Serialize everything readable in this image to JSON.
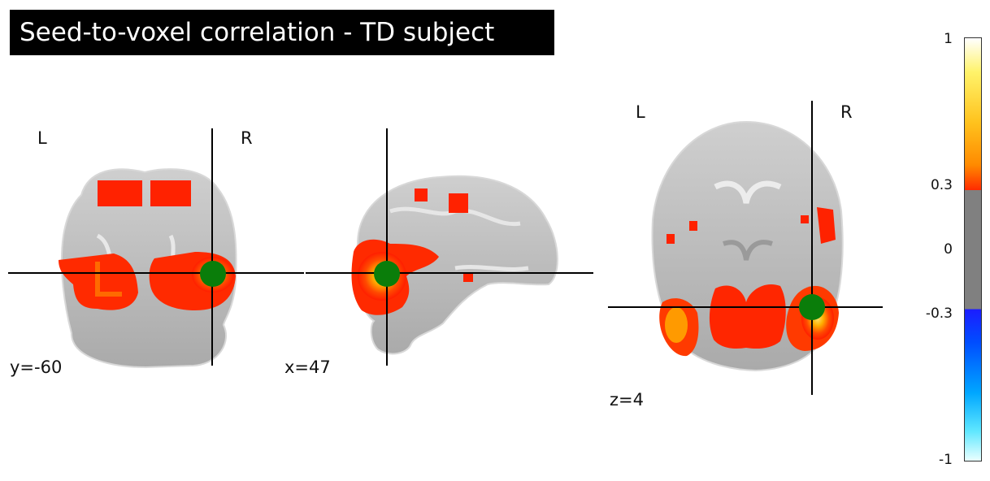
{
  "title": "Seed-to-voxel correlation - TD subject",
  "views": {
    "coronal": {
      "cut_label": "y=-60",
      "left": "L",
      "right": "R"
    },
    "sagittal": {
      "cut_label": "x=47"
    },
    "axial": {
      "cut_label": "z=4",
      "left": "L",
      "right": "R"
    }
  },
  "colorbar": {
    "ticks": [
      "1",
      "0.3",
      "0",
      "-0.3",
      "-1"
    ],
    "vmin": -1,
    "vmax": 1,
    "threshold": 0.3,
    "colormap": "cold_hot"
  },
  "colors": {
    "seed_marker": "#0a7d0a",
    "overlay_hot": "#ff2000",
    "overlay_core": "#ffb000",
    "brain_gray": "#b8b8b8",
    "crosshair": "#000000"
  }
}
